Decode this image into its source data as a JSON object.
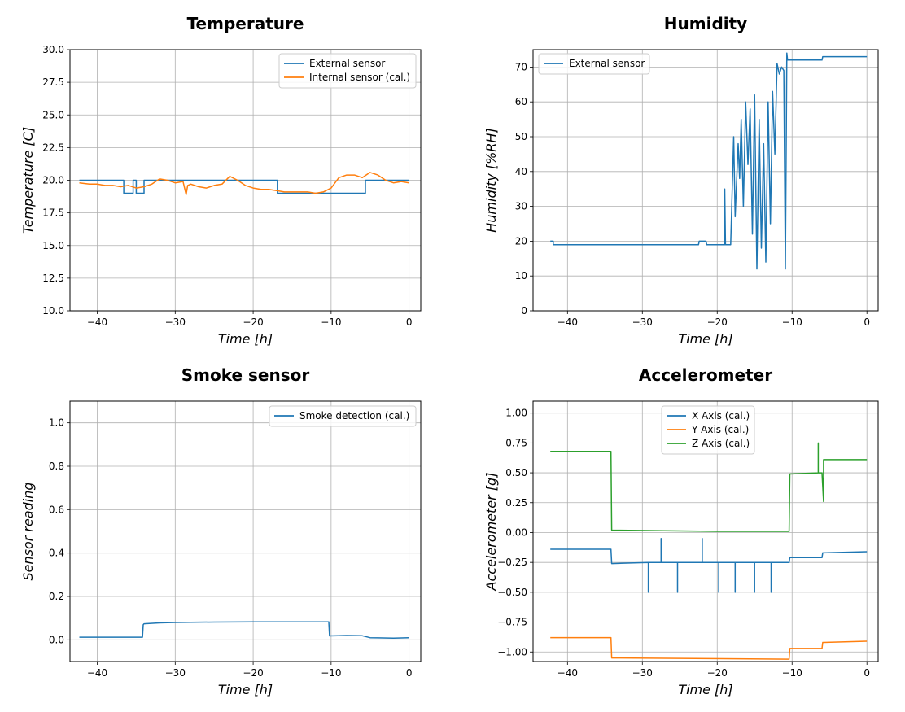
{
  "chart_data": [
    {
      "id": "temperature",
      "type": "line",
      "title": "Temperature",
      "xlabel": "Time [h]",
      "ylabel": "Temperature [C]",
      "xlim": [
        -43.5,
        1.5
      ],
      "ylim": [
        10.0,
        30.0
      ],
      "xticks": [
        -40,
        -30,
        -20,
        -10,
        0
      ],
      "xtick_labels": [
        "−40",
        "−30",
        "−20",
        "−10",
        "0"
      ],
      "yticks": [
        10.0,
        12.5,
        15.0,
        17.5,
        20.0,
        22.5,
        25.0,
        27.5,
        30.0
      ],
      "ytick_labels": [
        "10.0",
        "12.5",
        "15.0",
        "17.5",
        "20.0",
        "22.5",
        "25.0",
        "27.5",
        "30.0"
      ],
      "grid": true,
      "legend": "upper-right",
      "series": [
        {
          "name": "External sensor",
          "color": "#1f77b4",
          "x": [
            -42.3,
            -36.6,
            -36.6,
            -35.4,
            -35.4,
            -35.0,
            -35.0,
            -34.0,
            -34.0,
            -16.9,
            -16.9,
            -5.6,
            -5.6,
            0.0
          ],
          "y": [
            20,
            20,
            19,
            19,
            20,
            20,
            19,
            19,
            20,
            20,
            19,
            19,
            20,
            20
          ]
        },
        {
          "name": "Internal sensor (cal.)",
          "color": "#ff7f0e",
          "x": [
            -42.3,
            -41,
            -40,
            -39,
            -38,
            -37,
            -36,
            -35,
            -34,
            -33,
            -32,
            -31,
            -30,
            -29,
            -28.6,
            -28.4,
            -28,
            -27,
            -26,
            -25,
            -24,
            -23,
            -22,
            -21,
            -20,
            -19,
            -18,
            -17,
            -16,
            -15,
            -14,
            -13,
            -12,
            -11,
            -10,
            -9,
            -8,
            -7,
            -6,
            -5,
            -4,
            -3,
            -2,
            -1,
            0
          ],
          "y": [
            19.8,
            19.7,
            19.7,
            19.6,
            19.6,
            19.5,
            19.6,
            19.4,
            19.5,
            19.7,
            20.1,
            20.0,
            19.8,
            19.9,
            18.9,
            19.6,
            19.7,
            19.5,
            19.4,
            19.6,
            19.7,
            20.3,
            20.0,
            19.6,
            19.4,
            19.3,
            19.3,
            19.2,
            19.1,
            19.1,
            19.1,
            19.1,
            19.0,
            19.1,
            19.4,
            20.2,
            20.4,
            20.4,
            20.2,
            20.6,
            20.4,
            20.0,
            19.8,
            19.9,
            19.8
          ]
        }
      ]
    },
    {
      "id": "humidity",
      "type": "line",
      "title": "Humidity",
      "xlabel": "Time [h]",
      "ylabel": "Humidity [%RH]",
      "xlim": [
        -44.6,
        1.5
      ],
      "ylim": [
        0,
        75
      ],
      "xticks": [
        -40,
        -30,
        -20,
        -10,
        0
      ],
      "xtick_labels": [
        "−40",
        "−30",
        "−20",
        "−10",
        "0"
      ],
      "yticks": [
        0,
        10,
        20,
        30,
        40,
        50,
        60,
        70
      ],
      "ytick_labels": [
        "0",
        "10",
        "20",
        "30",
        "40",
        "50",
        "60",
        "70"
      ],
      "grid": true,
      "legend": "upper-left",
      "series": [
        {
          "name": "External sensor",
          "color": "#1f77b4",
          "x": [
            -42.3,
            -41.9,
            -41.9,
            -22.5,
            -22.4,
            -21.5,
            -21.4,
            -19.0,
            -19.0,
            -18.9,
            -18.7,
            -18.2,
            -17.8,
            -17.6,
            -17.2,
            -17.0,
            -16.8,
            -16.5,
            -16.2,
            -15.9,
            -15.6,
            -15.3,
            -15.0,
            -14.7,
            -14.4,
            -14.1,
            -13.8,
            -13.5,
            -13.2,
            -12.9,
            -12.6,
            -12.3,
            -12.0,
            -11.7,
            -11.4,
            -11.1,
            -10.9,
            -10.7,
            -10.6,
            -10.5,
            -10.5,
            -6.0,
            -5.9,
            0.0
          ],
          "y": [
            20,
            20,
            19,
            19,
            20,
            20,
            19,
            19,
            35,
            19,
            19,
            19,
            50,
            27,
            48,
            38,
            55,
            30,
            60,
            42,
            58,
            22,
            62,
            12,
            55,
            18,
            48,
            14,
            60,
            25,
            63,
            45,
            71,
            68,
            70,
            69,
            12,
            74,
            72,
            72,
            72,
            72,
            73,
            73
          ]
        }
      ]
    },
    {
      "id": "smoke",
      "type": "line",
      "title": "Smoke sensor",
      "xlabel": "Time [h]",
      "ylabel": "Sensor reading",
      "xlim": [
        -43.5,
        1.5
      ],
      "ylim": [
        -0.1,
        1.1
      ],
      "xticks": [
        -40,
        -30,
        -20,
        -10,
        0
      ],
      "xtick_labels": [
        "−40",
        "−30",
        "−20",
        "−10",
        "0"
      ],
      "yticks": [
        0.0,
        0.2,
        0.4,
        0.6,
        0.8,
        1.0
      ],
      "ytick_labels": [
        "0.0",
        "0.2",
        "0.4",
        "0.6",
        "0.8",
        "1.0"
      ],
      "grid": true,
      "legend": "upper-right",
      "series": [
        {
          "name": "Smoke detection (cal.)",
          "color": "#1f77b4",
          "x": [
            -42.3,
            -38,
            -34.2,
            -34.1,
            -34.0,
            -32,
            -30,
            -28,
            -25,
            -20,
            -15,
            -10.3,
            -10.2,
            -8,
            -6,
            -5,
            -4,
            -2,
            0
          ],
          "y": [
            0.012,
            0.012,
            0.012,
            0.07,
            0.074,
            0.078,
            0.08,
            0.081,
            0.082,
            0.083,
            0.083,
            0.083,
            0.018,
            0.02,
            0.019,
            0.01,
            0.009,
            0.008,
            0.01
          ]
        }
      ]
    },
    {
      "id": "accelerometer",
      "type": "line",
      "title": "Accelerometer",
      "xlabel": "Time [h]",
      "ylabel": "Accelerometer [g]",
      "xlim": [
        -44.6,
        1.5
      ],
      "ylim": [
        -1.08,
        1.1
      ],
      "xticks": [
        -40,
        -30,
        -20,
        -10,
        0
      ],
      "xtick_labels": [
        "−40",
        "−30",
        "−20",
        "−10",
        "0"
      ],
      "yticks": [
        -1.0,
        -0.75,
        -0.5,
        -0.25,
        0.0,
        0.25,
        0.5,
        0.75,
        1.0
      ],
      "ytick_labels": [
        "−1.00",
        "−0.75",
        "−0.50",
        "−0.25",
        "0.00",
        "0.25",
        "0.50",
        "0.75",
        "1.00"
      ],
      "grid": true,
      "legend": "upper-center",
      "series": [
        {
          "name": "X Axis (cal.)",
          "color": "#1f77b4",
          "x": [
            -42.3,
            -34.2,
            -34.1,
            -29.2,
            -29.2,
            -29.2,
            -27.5,
            -27.5,
            -27.5,
            -25.3,
            -25.3,
            -25.3,
            -22.0,
            -22.0,
            -22.0,
            -19.8,
            -19.8,
            -19.8,
            -17.6,
            -17.6,
            -17.6,
            -15.0,
            -15.0,
            -15.0,
            -12.8,
            -12.8,
            -12.8,
            -10.4,
            -10.3,
            -6.0,
            -5.9,
            0.0
          ],
          "y": [
            -0.14,
            -0.14,
            -0.26,
            -0.25,
            -0.5,
            -0.25,
            -0.25,
            -0.05,
            -0.25,
            -0.25,
            -0.5,
            -0.25,
            -0.25,
            -0.05,
            -0.25,
            -0.25,
            -0.5,
            -0.25,
            -0.25,
            -0.5,
            -0.25,
            -0.25,
            -0.5,
            -0.25,
            -0.25,
            -0.5,
            -0.25,
            -0.25,
            -0.21,
            -0.21,
            -0.17,
            -0.16
          ]
        },
        {
          "name": "Y Axis (cal.)",
          "color": "#ff7f0e",
          "x": [
            -42.3,
            -34.2,
            -34.1,
            -10.4,
            -10.3,
            -6.0,
            -5.9,
            0.0
          ],
          "y": [
            -0.88,
            -0.88,
            -1.05,
            -1.06,
            -0.97,
            -0.97,
            -0.92,
            -0.91
          ]
        },
        {
          "name": "Z Axis (cal.)",
          "color": "#2ca02c",
          "x": [
            -42.3,
            -34.2,
            -34.1,
            -20,
            -10.4,
            -10.3,
            -6.5,
            -6.5,
            -6.5,
            -6.0,
            -5.8,
            -5.8,
            -5.7,
            0.0
          ],
          "y": [
            0.68,
            0.68,
            0.02,
            0.01,
            0.01,
            0.49,
            0.5,
            0.75,
            0.5,
            0.5,
            0.26,
            0.61,
            0.61,
            0.61
          ]
        }
      ]
    }
  ]
}
